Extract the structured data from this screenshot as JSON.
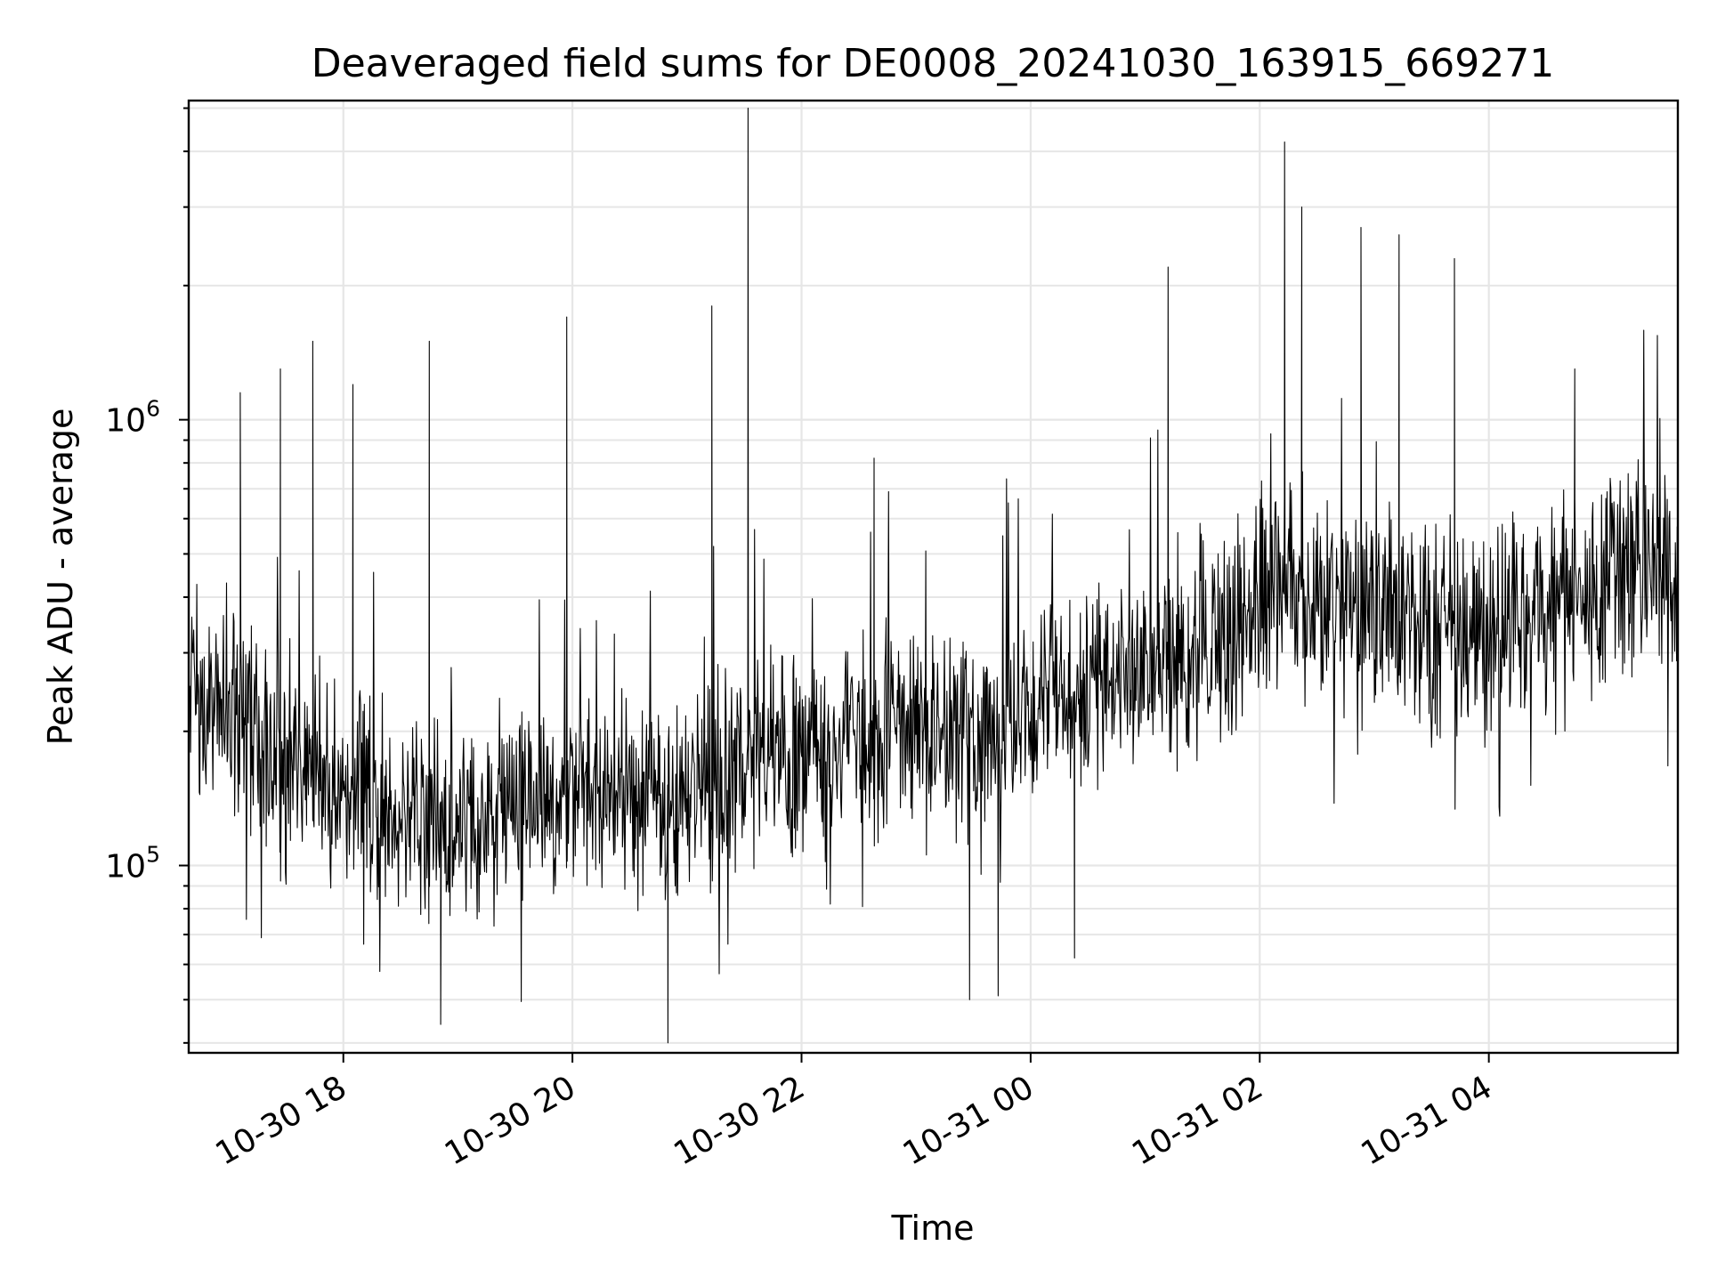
{
  "chart_data": {
    "type": "line",
    "title": "Deaveraged field sums for DE0008_20241030_163915_669271",
    "xlabel": "Time",
    "ylabel": "Peak ADU - average",
    "y_scale": "log",
    "grid": true,
    "legend": "none",
    "colors": {
      "line": "#000000",
      "grid": "#e6e6e6",
      "axes": "#000000"
    },
    "xlim": [
      "2024-10-30 16:39",
      "2024-10-31 05:39"
    ],
    "ylim": [
      38000,
      5200000
    ],
    "x_ticks": [
      {
        "t": "2024-10-30 18:00",
        "label": "10-30 18"
      },
      {
        "t": "2024-10-30 20:00",
        "label": "10-30 20"
      },
      {
        "t": "2024-10-30 22:00",
        "label": "10-30 22"
      },
      {
        "t": "2024-10-31 00:00",
        "label": "10-31 00"
      },
      {
        "t": "2024-10-31 02:00",
        "label": "10-31 02"
      },
      {
        "t": "2024-10-31 04:00",
        "label": "10-31 04"
      }
    ],
    "y_ticks": [
      {
        "value": 100000,
        "base": "10",
        "exp": "5"
      },
      {
        "value": 1000000,
        "base": "10",
        "exp": "6"
      }
    ],
    "series": [
      {
        "x": [
          "2024-10-30 16:45",
          "2024-10-30 17:00",
          "2024-10-30 17:15",
          "2024-10-30 17:30",
          "2024-10-30 17:45",
          "2024-10-30 18:00",
          "2024-10-30 18:15",
          "2024-10-30 18:30",
          "2024-10-30 18:45",
          "2024-10-30 19:00",
          "2024-10-30 19:15",
          "2024-10-30 19:30",
          "2024-10-30 19:45",
          "2024-10-30 20:00",
          "2024-10-30 20:15",
          "2024-10-30 20:30",
          "2024-10-30 20:45",
          "2024-10-30 21:00",
          "2024-10-30 21:15",
          "2024-10-30 21:30",
          "2024-10-30 21:45",
          "2024-10-30 22:00",
          "2024-10-30 22:15",
          "2024-10-30 22:30",
          "2024-10-30 22:45",
          "2024-10-30 23:00",
          "2024-10-30 23:15",
          "2024-10-30 23:30",
          "2024-10-30 23:45",
          "2024-10-31 00:00",
          "2024-10-31 00:15",
          "2024-10-31 00:30",
          "2024-10-31 00:45",
          "2024-10-31 01:00",
          "2024-10-31 01:15",
          "2024-10-31 01:30",
          "2024-10-31 01:45",
          "2024-10-31 02:00",
          "2024-10-31 02:15",
          "2024-10-31 02:30",
          "2024-10-31 02:45",
          "2024-10-31 03:00",
          "2024-10-31 03:15",
          "2024-10-31 03:30",
          "2024-10-31 03:45",
          "2024-10-31 04:00",
          "2024-10-31 04:15",
          "2024-10-31 04:30",
          "2024-10-31 04:45",
          "2024-10-31 05:00",
          "2024-10-31 05:15",
          "2024-10-31 05:30"
        ],
        "y": [
          240000,
          220000,
          200000,
          170000,
          160000,
          150000,
          140000,
          130000,
          125000,
          120000,
          120000,
          125000,
          130000,
          135000,
          140000,
          135000,
          130000,
          140000,
          160000,
          170000,
          175000,
          175000,
          180000,
          185000,
          195000,
          200000,
          195000,
          200000,
          210000,
          220000,
          230000,
          240000,
          250000,
          260000,
          270000,
          300000,
          330000,
          400000,
          420000,
          380000,
          400000,
          390000,
          370000,
          350000,
          330000,
          340000,
          360000,
          380000,
          400000,
          420000,
          440000,
          480000
        ],
        "y_low": [
          130000,
          120000,
          100000,
          85000,
          80000,
          80000,
          75000,
          72000,
          70000,
          70000,
          70000,
          72000,
          75000,
          78000,
          80000,
          75000,
          72000,
          75000,
          85000,
          90000,
          95000,
          95000,
          100000,
          100000,
          105000,
          105000,
          100000,
          105000,
          115000,
          125000,
          130000,
          135000,
          140000,
          145000,
          150000,
          165000,
          180000,
          200000,
          210000,
          195000,
          200000,
          195000,
          185000,
          170000,
          160000,
          165000,
          175000,
          185000,
          195000,
          210000,
          220000,
          240000
        ],
        "y_high": [
          450000,
          420000,
          380000,
          320000,
          300000,
          290000,
          270000,
          250000,
          240000,
          230000,
          230000,
          240000,
          250000,
          260000,
          270000,
          260000,
          250000,
          270000,
          300000,
          320000,
          330000,
          330000,
          340000,
          350000,
          370000,
          380000,
          370000,
          380000,
          400000,
          420000,
          440000,
          460000,
          480000,
          500000,
          520000,
          580000,
          640000,
          780000,
          820000,
          740000,
          780000,
          760000,
          720000,
          680000,
          640000,
          660000,
          700000,
          740000,
          780000,
          820000,
          860000,
          900000
        ],
        "spikes": [
          {
            "t": "2024-10-30 17:06",
            "v": 1150000
          },
          {
            "t": "2024-10-30 17:27",
            "v": 1300000
          },
          {
            "t": "2024-10-30 17:44",
            "v": 1500000
          },
          {
            "t": "2024-10-30 18:05",
            "v": 1200000
          },
          {
            "t": "2024-10-30 18:45",
            "v": 1500000
          },
          {
            "t": "2024-10-30 19:57",
            "v": 1700000
          },
          {
            "t": "2024-10-30 21:13",
            "v": 1800000
          },
          {
            "t": "2024-10-30 21:32",
            "v": 5000000
          },
          {
            "t": "2024-10-30 22:38",
            "v": 820000
          },
          {
            "t": "2024-10-31 01:12",
            "v": 2200000
          },
          {
            "t": "2024-10-31 02:13",
            "v": 4200000
          },
          {
            "t": "2024-10-31 02:22",
            "v": 3000000
          },
          {
            "t": "2024-10-31 02:53",
            "v": 2700000
          },
          {
            "t": "2024-10-31 03:13",
            "v": 2600000
          },
          {
            "t": "2024-10-31 03:42",
            "v": 2300000
          },
          {
            "t": "2024-10-31 04:45",
            "v": 1300000
          },
          {
            "t": "2024-10-30 18:51",
            "v": 44000
          },
          {
            "t": "2024-10-30 20:50",
            "v": 40000
          },
          {
            "t": "2024-10-30 23:28",
            "v": 50000
          },
          {
            "t": "2024-10-30 23:43",
            "v": 51000
          },
          {
            "t": "2024-10-31 00:23",
            "v": 62000
          }
        ]
      }
    ]
  }
}
